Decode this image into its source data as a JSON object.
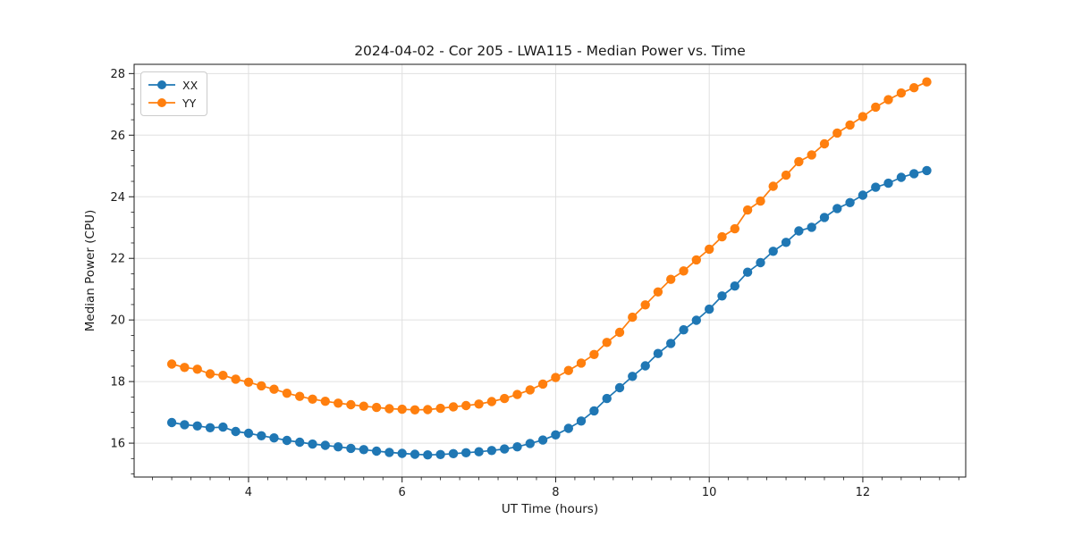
{
  "chart_data": {
    "type": "line",
    "title": "2024-04-02 - Cor 205 - LWA115 - Median Power vs. Time",
    "xlabel": "UT Time (hours)",
    "ylabel": "Median Power (CPU)",
    "xlim": [
      2.51,
      13.34
    ],
    "ylim": [
      14.9,
      28.3
    ],
    "x_major_ticks": [
      4,
      6,
      8,
      10,
      12
    ],
    "y_major_ticks": [
      16,
      18,
      20,
      22,
      24,
      26,
      28
    ],
    "x_minor_step": 0.25,
    "y_minor_step": 0.5,
    "grid": "major-only",
    "legend_position": "upper-left",
    "x": [
      3.0,
      3.167,
      3.333,
      3.5,
      3.667,
      3.833,
      4.0,
      4.167,
      4.333,
      4.5,
      4.667,
      4.833,
      5.0,
      5.167,
      5.333,
      5.5,
      5.667,
      5.833,
      6.0,
      6.167,
      6.333,
      6.5,
      6.667,
      6.833,
      7.0,
      7.167,
      7.333,
      7.5,
      7.667,
      7.833,
      8.0,
      8.167,
      8.333,
      8.5,
      8.667,
      8.833,
      9.0,
      9.167,
      9.333,
      9.5,
      9.667,
      9.833,
      10.0,
      10.167,
      10.333,
      10.5,
      10.667,
      10.833,
      11.0,
      11.167,
      11.333,
      11.5,
      11.667,
      11.833,
      12.0,
      12.167,
      12.333,
      12.5,
      12.667,
      12.833
    ],
    "series": [
      {
        "name": "XX",
        "color": "#1f77b4",
        "values": [
          16.67,
          16.6,
          16.56,
          16.5,
          16.52,
          16.38,
          16.32,
          16.24,
          16.17,
          16.09,
          16.03,
          15.97,
          15.93,
          15.88,
          15.83,
          15.79,
          15.74,
          15.7,
          15.67,
          15.64,
          15.62,
          15.63,
          15.66,
          15.69,
          15.72,
          15.76,
          15.81,
          15.88,
          15.99,
          16.1,
          16.27,
          16.48,
          16.72,
          17.05,
          17.45,
          17.8,
          18.17,
          18.51,
          18.91,
          19.24,
          19.68,
          19.99,
          20.35,
          20.78,
          21.1,
          21.55,
          21.86,
          22.23,
          22.52,
          22.89,
          23.01,
          23.33,
          23.62,
          23.81,
          24.05,
          24.31,
          24.44,
          24.63,
          24.75,
          24.85
        ]
      },
      {
        "name": "YY",
        "color": "#ff7f0e",
        "values": [
          18.57,
          18.46,
          18.4,
          18.25,
          18.2,
          18.08,
          17.98,
          17.86,
          17.75,
          17.62,
          17.52,
          17.43,
          17.36,
          17.3,
          17.25,
          17.2,
          17.16,
          17.12,
          17.1,
          17.08,
          17.09,
          17.13,
          17.18,
          17.22,
          17.27,
          17.35,
          17.45,
          17.58,
          17.73,
          17.92,
          18.13,
          18.36,
          18.6,
          18.88,
          19.27,
          19.6,
          20.09,
          20.49,
          20.91,
          21.32,
          21.59,
          21.95,
          22.3,
          22.7,
          22.96,
          23.57,
          23.86,
          24.34,
          24.7,
          25.14,
          25.36,
          25.72,
          26.07,
          26.33,
          26.6,
          26.91,
          27.15,
          27.37,
          27.54,
          27.73
        ]
      }
    ],
    "style": {
      "grid_color": "#e0e0e0",
      "spine_color": "#1a1a1a",
      "tick_color": "#1a1a1a",
      "marker_radius": 5.2,
      "line_width": 1.7
    }
  }
}
